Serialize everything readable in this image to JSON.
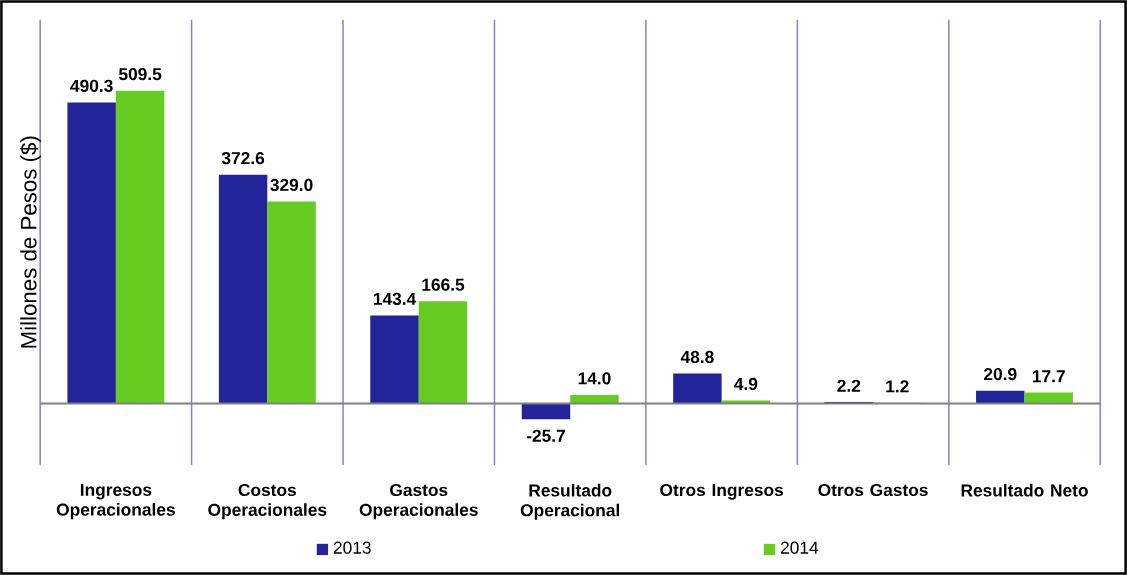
{
  "chart_data": {
    "type": "bar",
    "ylabel": "Millones de Pesos ($)",
    "categories": [
      "Ingresos Operacionales",
      "Costos Operacionales",
      "Gastos Operacionales",
      "Resultado Operacional",
      "Otros Ingresos",
      "Otros Gastos",
      "Resultado Neto"
    ],
    "series": [
      {
        "name": "2013",
        "color": "#23239a",
        "values": [
          490.3,
          372.6,
          143.4,
          -25.7,
          48.8,
          2.2,
          20.9
        ],
        "value_labels": [
          "490.3",
          "372.6",
          "143.4",
          "-25.7",
          "48.8",
          "2.2",
          "20.9"
        ]
      },
      {
        "name": "2014",
        "color": "#66cc22",
        "values": [
          509.5,
          329.0,
          166.5,
          14.0,
          4.9,
          1.2,
          17.7
        ],
        "value_labels": [
          "509.5",
          "329.0",
          "166.5",
          "14.0",
          "4.9",
          "1.2",
          "17.7"
        ]
      }
    ],
    "ylim": [
      -100,
      625
    ],
    "grid": "x",
    "legend": "bottom"
  }
}
